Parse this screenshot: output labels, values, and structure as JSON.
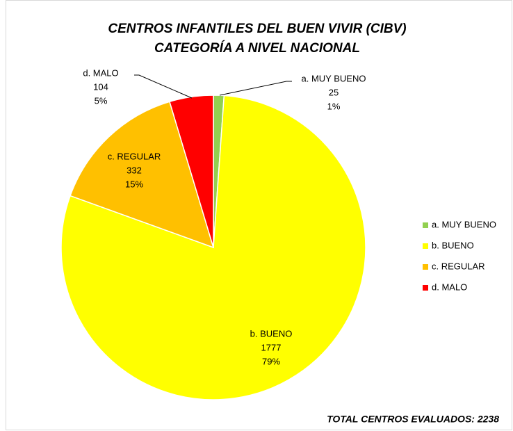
{
  "chart_data": {
    "type": "pie",
    "title": [
      "CENTROS INFANTILES DEL BUEN VIVIR (CIBV)",
      "CATEGORÍA A NIVEL NACIONAL"
    ],
    "categories": [
      "a. MUY BUENO",
      "b. BUENO",
      "c. REGULAR",
      "d. MALO"
    ],
    "values": [
      25,
      1777,
      332,
      104
    ],
    "percent_labels": [
      "1%",
      "79%",
      "15%",
      "5%"
    ],
    "colors": [
      "#92d050",
      "#ffff00",
      "#ffc000",
      "#ff0000"
    ],
    "legend": "right",
    "annotation": "TOTAL CENTROS EVALUADOS: 2238"
  }
}
